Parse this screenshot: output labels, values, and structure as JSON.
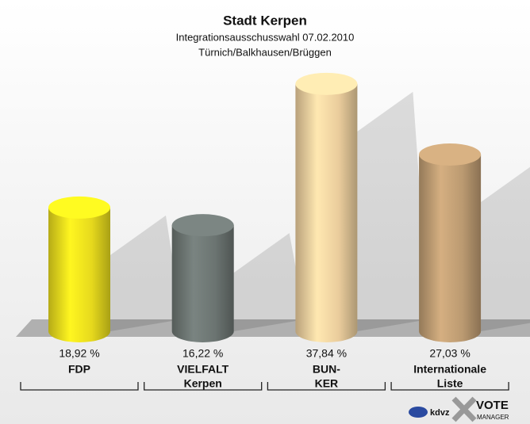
{
  "chart_data": {
    "type": "bar",
    "title": "Stadt Kerpen",
    "subtitle": [
      "Integrationsausschusswahl 07.02.2010",
      "Türnich/Balkhausen/Brüggen"
    ],
    "categories": [
      [
        "FDP"
      ],
      [
        "VIELFALT",
        "Kerpen"
      ],
      [
        "BUN-",
        "KER"
      ],
      [
        "Internationale",
        "Liste"
      ]
    ],
    "values": [
      18.92,
      16.22,
      37.84,
      27.03
    ],
    "value_labels": [
      "18,92 %",
      "16,22 %",
      "37,84 %",
      "27,03 %"
    ],
    "colors": [
      "#f2e41e",
      "#717a77",
      "#f6d7a4",
      "#c5a277"
    ],
    "logo": [
      "kdvz",
      "VOTE",
      "MANAGER"
    ]
  }
}
